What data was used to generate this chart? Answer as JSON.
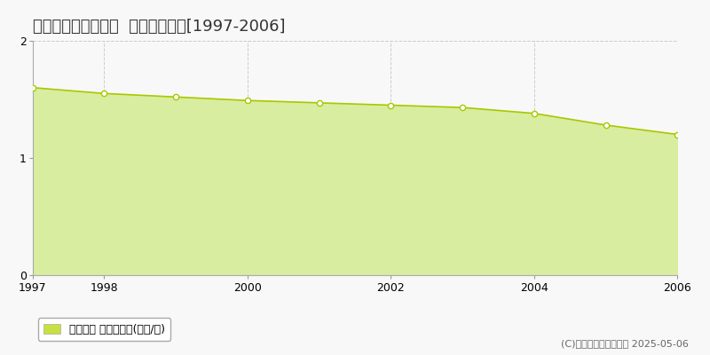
{
  "title": "東津軽郡今別町袏月  基準地価推移[1997-2006]",
  "years": [
    1997,
    1998,
    1999,
    2000,
    2001,
    2002,
    2003,
    2004,
    2005,
    2006
  ],
  "values": [
    1.6,
    1.55,
    1.52,
    1.49,
    1.47,
    1.45,
    1.43,
    1.38,
    1.28,
    1.2
  ],
  "ylim": [
    0,
    2
  ],
  "xlim": [
    1997,
    2006
  ],
  "yticks": [
    0,
    1,
    2
  ],
  "xticks": [
    1997,
    1998,
    2000,
    2002,
    2004,
    2006
  ],
  "line_color": "#a8c800",
  "fill_color": "#d8eda0",
  "marker_facecolor": "#ffffff",
  "marker_edgecolor": "#a8c800",
  "grid_color": "#cccccc",
  "bg_color": "#f8f8f8",
  "plot_bg_color": "#f8f8f8",
  "legend_label": "基準地価 平均嵪単価(万円/嵪)",
  "legend_color": "#c8e040",
  "copyright_text": "(C)土地価格ドットコム 2025-05-06",
  "title_fontsize": 13,
  "axis_fontsize": 9,
  "legend_fontsize": 9,
  "copyright_fontsize": 8
}
